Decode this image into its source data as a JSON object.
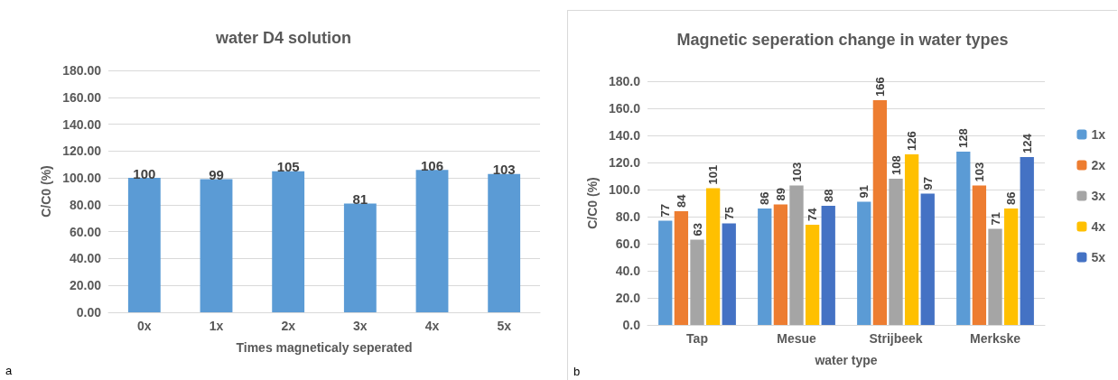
{
  "chart_data": [
    {
      "type": "bar",
      "title": "water D4 solution",
      "xlabel": "Times magneticaly seperated",
      "ylabel": "C/C0 (%)",
      "categories": [
        "0x",
        "1x",
        "2x",
        "3x",
        "4x",
        "5x"
      ],
      "values": [
        100,
        99,
        105,
        81,
        106,
        103
      ],
      "color": "#5b9bd5",
      "ylim": [
        0,
        180
      ],
      "yticks": [
        {
          "value": 0,
          "label": "0.00"
        },
        {
          "value": 20,
          "label": "20.00"
        },
        {
          "value": 40,
          "label": "40.00"
        },
        {
          "value": 60,
          "label": "60.00"
        },
        {
          "value": 80,
          "label": "80.00"
        },
        {
          "value": 100,
          "label": "100.00"
        },
        {
          "value": 120,
          "label": "120.00"
        },
        {
          "value": 140,
          "label": "140.00"
        },
        {
          "value": 160,
          "label": "160.00"
        },
        {
          "value": 180,
          "label": "180.00"
        }
      ],
      "grid": "y",
      "data_labels": true,
      "legend": false,
      "annotations": [
        "a"
      ]
    },
    {
      "type": "bar",
      "title": "Magnetic seperation change in water types",
      "xlabel": "water type",
      "ylabel": "C/C0 (%)",
      "categories": [
        "Tap",
        "Mesue",
        "Strijbeek",
        "Merkske"
      ],
      "series": [
        {
          "name": "1x",
          "color": "#5b9bd5",
          "values": [
            77,
            86,
            91,
            128
          ]
        },
        {
          "name": "2x",
          "color": "#ed7d31",
          "values": [
            84,
            89,
            166,
            103
          ]
        },
        {
          "name": "3x",
          "color": "#a5a5a5",
          "values": [
            63,
            103,
            108,
            71
          ]
        },
        {
          "name": "4x",
          "color": "#ffc000",
          "values": [
            101,
            74,
            126,
            86
          ]
        },
        {
          "name": "5x",
          "color": "#4472c4",
          "values": [
            75,
            88,
            97,
            124
          ]
        }
      ],
      "ylim": [
        0,
        180
      ],
      "yticks": [
        {
          "value": 0,
          "label": "0.0"
        },
        {
          "value": 20,
          "label": "20.0"
        },
        {
          "value": 40,
          "label": "40.0"
        },
        {
          "value": 60,
          "label": "60.0"
        },
        {
          "value": 80,
          "label": "80.0"
        },
        {
          "value": 100,
          "label": "100.0"
        },
        {
          "value": 120,
          "label": "120.0"
        },
        {
          "value": 140,
          "label": "140.0"
        },
        {
          "value": 160,
          "label": "160.0"
        },
        {
          "value": 180,
          "label": "180.0"
        }
      ],
      "grid": "y",
      "data_labels": true,
      "legend": "right",
      "annotations": [
        "b"
      ]
    }
  ]
}
